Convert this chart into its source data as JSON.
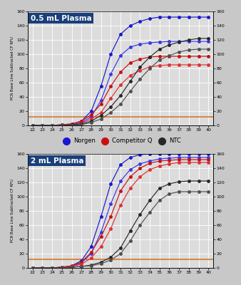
{
  "x": [
    22,
    23,
    24,
    25,
    26,
    27,
    28,
    29,
    30,
    31,
    32,
    33,
    34,
    35,
    36,
    37,
    38,
    39,
    40
  ],
  "panel1_title": "0.5 mL Plasma",
  "panel2_title": "2 mL Plasma",
  "ylabel": "PCR Base Line Subtracted CF RFU",
  "xlim": [
    21.5,
    40.5
  ],
  "ylim": [
    0,
    160
  ],
  "yticks": [
    0,
    20,
    40,
    60,
    80,
    100,
    120,
    140,
    160
  ],
  "xticks": [
    22,
    23,
    24,
    25,
    26,
    27,
    28,
    29,
    30,
    31,
    32,
    33,
    34,
    35,
    36,
    37,
    38,
    39,
    40
  ],
  "threshold": 12,
  "threshold_color": "#d4782a",
  "bg_color": "#dcdcdc",
  "grid_color": "#ffffff",
  "title_bg": "#1a3f7a",
  "title_color": "#ffffff",
  "fig_bg": "#c8c8c8",
  "panel1": {
    "blue1": [
      0,
      0,
      0,
      1,
      2,
      6,
      20,
      55,
      100,
      128,
      140,
      146,
      150,
      152,
      152,
      152,
      152,
      152,
      152
    ],
    "blue2": [
      0,
      0,
      0,
      0,
      1,
      4,
      12,
      35,
      72,
      98,
      110,
      114,
      116,
      117,
      118,
      118,
      118,
      118,
      118
    ],
    "red1": [
      0,
      0,
      0,
      1,
      2,
      6,
      15,
      30,
      55,
      75,
      88,
      93,
      96,
      97,
      97,
      97,
      97,
      97,
      97
    ],
    "red2": [
      0,
      0,
      0,
      0,
      1,
      3,
      9,
      18,
      38,
      57,
      70,
      77,
      82,
      84,
      85,
      85,
      85,
      85,
      85
    ],
    "black1": [
      0,
      0,
      0,
      0,
      1,
      2,
      6,
      14,
      26,
      42,
      62,
      82,
      96,
      107,
      113,
      117,
      120,
      122,
      122
    ],
    "black2": [
      0,
      0,
      0,
      0,
      0,
      1,
      4,
      9,
      18,
      30,
      48,
      65,
      80,
      92,
      98,
      103,
      106,
      107,
      107
    ]
  },
  "panel2": {
    "blue1": [
      0,
      0,
      0,
      1,
      3,
      10,
      30,
      72,
      118,
      145,
      155,
      159,
      160,
      160,
      160,
      160,
      160,
      160,
      160
    ],
    "blue2": [
      0,
      0,
      0,
      1,
      2,
      7,
      20,
      50,
      90,
      122,
      138,
      146,
      150,
      153,
      154,
      155,
      155,
      155,
      155
    ],
    "red1": [
      0,
      0,
      0,
      1,
      3,
      8,
      22,
      44,
      72,
      108,
      128,
      140,
      147,
      150,
      151,
      152,
      152,
      152,
      152
    ],
    "red2": [
      0,
      0,
      0,
      1,
      2,
      5,
      14,
      30,
      55,
      88,
      112,
      128,
      138,
      143,
      146,
      148,
      148,
      148,
      148
    ],
    "black1": [
      0,
      0,
      0,
      0,
      1,
      2,
      4,
      8,
      15,
      28,
      52,
      75,
      95,
      112,
      118,
      121,
      122,
      122,
      122
    ],
    "black2": [
      0,
      0,
      0,
      0,
      1,
      2,
      3,
      6,
      11,
      20,
      38,
      60,
      78,
      95,
      104,
      107,
      107,
      107,
      107
    ]
  }
}
